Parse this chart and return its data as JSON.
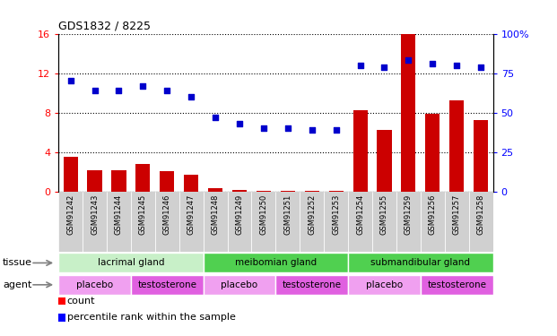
{
  "title": "GDS1832 / 8225",
  "samples": [
    "GSM91242",
    "GSM91243",
    "GSM91244",
    "GSM91245",
    "GSM91246",
    "GSM91247",
    "GSM91248",
    "GSM91249",
    "GSM91250",
    "GSM91251",
    "GSM91252",
    "GSM91253",
    "GSM91254",
    "GSM91255",
    "GSM91259",
    "GSM91256",
    "GSM91257",
    "GSM91258"
  ],
  "count_values": [
    3.5,
    2.2,
    2.2,
    2.8,
    2.1,
    1.7,
    0.3,
    0.2,
    0.1,
    0.05,
    0.05,
    0.08,
    8.2,
    6.2,
    16.0,
    7.9,
    9.2,
    7.2
  ],
  "percentile_values": [
    70,
    64,
    64,
    67,
    64,
    60,
    47,
    43,
    40,
    40,
    39,
    39,
    80,
    79,
    83,
    81,
    80,
    79
  ],
  "bar_color": "#cc0000",
  "dot_color": "#0000cc",
  "ylim_left": [
    0,
    16
  ],
  "ylim_right": [
    0,
    100
  ],
  "yticks_left": [
    0,
    4,
    8,
    12,
    16
  ],
  "yticks_right": [
    0,
    25,
    50,
    75,
    100
  ],
  "tissue_groups": [
    {
      "label": "lacrimal gland",
      "start": 0,
      "end": 6,
      "color": "#c8f0c8"
    },
    {
      "label": "meibomian gland",
      "start": 6,
      "end": 12,
      "color": "#50d050"
    },
    {
      "label": "submandibular gland",
      "start": 12,
      "end": 18,
      "color": "#50d050"
    }
  ],
  "agent_groups": [
    {
      "label": "placebo",
      "start": 0,
      "end": 3,
      "color": "#f0a0f0"
    },
    {
      "label": "testosterone",
      "start": 3,
      "end": 6,
      "color": "#e060e0"
    },
    {
      "label": "placebo",
      "start": 6,
      "end": 9,
      "color": "#f0a0f0"
    },
    {
      "label": "testosterone",
      "start": 9,
      "end": 12,
      "color": "#e060e0"
    },
    {
      "label": "placebo",
      "start": 12,
      "end": 15,
      "color": "#f0a0f0"
    },
    {
      "label": "testosterone",
      "start": 15,
      "end": 18,
      "color": "#e060e0"
    }
  ],
  "legend_count_label": "count",
  "legend_pct_label": "percentile rank within the sample",
  "tissue_label": "tissue",
  "agent_label": "agent",
  "xtick_bg_color": "#d0d0d0",
  "plot_bg_color": "#ffffff"
}
